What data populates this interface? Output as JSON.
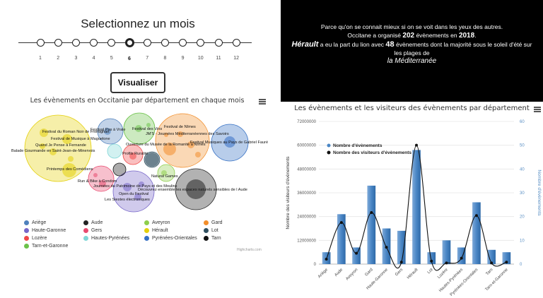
{
  "month_selector": {
    "title": "Selectionnez un mois",
    "months": [
      "1",
      "2",
      "3",
      "4",
      "5",
      "6",
      "7",
      "8",
      "9",
      "10",
      "11",
      "12"
    ],
    "selected": "6",
    "button_label": "Visualiser"
  },
  "bubble_chart": {
    "title": "Les évènements en Occitanie par département en chaque mois",
    "credit": "Highcharts.com",
    "legend": [
      {
        "name": "Ariège",
        "color": "#4f81bd"
      },
      {
        "name": "Aude",
        "color": "#222222"
      },
      {
        "name": "Aveyron",
        "color": "#8fce4c"
      },
      {
        "name": "Gard",
        "color": "#f28e2b"
      },
      {
        "name": "Haute-Garonne",
        "color": "#7766c9"
      },
      {
        "name": "Gers",
        "color": "#e84a6f"
      },
      {
        "name": "Hérault",
        "color": "#e4d00a"
      },
      {
        "name": "Lot",
        "color": "#2f4f5f"
      },
      {
        "name": "Lozère",
        "color": "#f04848"
      },
      {
        "name": "Hautes-Pyrénées",
        "color": "#7fd6d6"
      },
      {
        "name": "Pyrénées-Orientales",
        "color": "#3570c4"
      },
      {
        "name": "Tarn",
        "color": "#111111"
      },
      {
        "name": "Tarn-et-Garonne",
        "color": "#6cc24a"
      }
    ],
    "event_labels": [
      "Festival du Roman Noir de Frontignan",
      "Festival de Musique à Maguelone",
      "Quand Je Pense à Fernande",
      "Balade Gourmande en Saint-Jean-de-Minervois",
      "Printemps des Comédiens",
      "Festival Pas à Vraie",
      "Festival des Vins",
      "Festival de Nîmes",
      "JM'S - Journées Méditerranéennes des Savoirs",
      "Ouverture du Musée de la Romanité à Nîmes",
      "Festival Musiques au Pays de Gabriel Fauré",
      "Profils Ruralité",
      "Natural Games",
      "Run & Bike à Condom",
      "Journées du Patrimoine de Pays et des Moulins",
      "Découvrez ensemble les espaces naturels sensibles de l Aude",
      "Open du Festival",
      "Les Siestes électroniques"
    ]
  },
  "summary": {
    "line1": "Parce qu'on se connait mieux si on se voit dans les yeux des autres.",
    "line2_pre": "Occitane a organisé ",
    "total_events": "202",
    "line2_mid": " évènements en ",
    "year": "2018",
    "line2_post": ".",
    "top_dept": "Hérault",
    "line3_mid": " a eu la part du lion avec ",
    "top_count": "48",
    "line3_post": " évènements dont la majorité sous le soleil d'été sur",
    "line4": "les plages de",
    "place": "la Méditerranée"
  },
  "chart_data": {
    "type": "bar",
    "title": "Les évènements et les visiteurs des évènements par département",
    "categories": [
      "Ariège",
      "Aude",
      "Aveyron",
      "Gard",
      "Haute-Garonne",
      "Gers",
      "Hérault",
      "Lot",
      "Lozère",
      "Hautes-Pyrénées",
      "Pyrénées-Orientales",
      "Tarn",
      "Tarn-et-Garonne"
    ],
    "series": [
      {
        "name": "Nombre d'évènements",
        "type": "bar",
        "axis": "right",
        "values": [
          5,
          21,
          7,
          33,
          15,
          14,
          48,
          5,
          10,
          7,
          26,
          6,
          5
        ],
        "color": "#4a86c5"
      },
      {
        "name": "Nombre des visiteurs d'évènements",
        "type": "line",
        "axis": "left",
        "values": [
          2500000,
          21000000,
          5500000,
          26000000,
          8500000,
          1000000,
          60000000,
          1500000,
          600000,
          3000000,
          24500000,
          600000,
          1000000
        ],
        "color": "#111111"
      }
    ],
    "ylabel": "Nombre des visiteurs d'évènements",
    "ylabel_right": "Nombre d'évènements",
    "ylim": [
      0,
      72000000
    ],
    "ylim_right": [
      0,
      60
    ],
    "y_ticks": [
      "0",
      "12000000",
      "24000000",
      "36000000",
      "48000000",
      "60000000",
      "72000000"
    ],
    "y_ticks_right": [
      "0",
      "10",
      "20",
      "30",
      "40",
      "50",
      "60"
    ],
    "legend_position": "top-left",
    "grid": true
  }
}
